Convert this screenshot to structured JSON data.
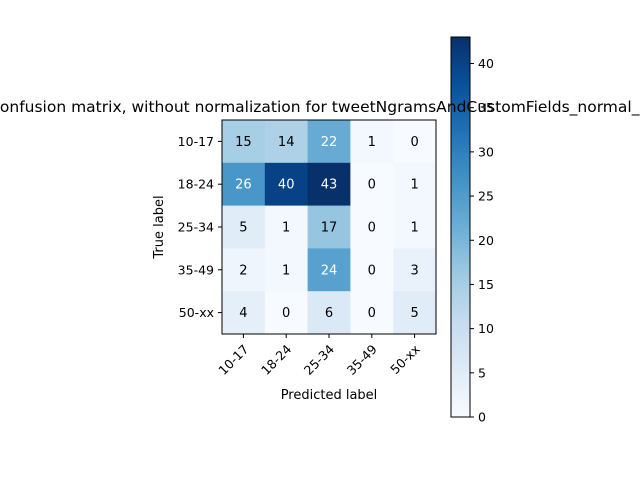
{
  "chart_data": {
    "type": "heatmap",
    "title": "Confusion matrix, without normalization for tweetNgramsAndCustomFields_normal_unb",
    "xlabel": "Predicted label",
    "ylabel": "True label",
    "x_categories": [
      "10-17",
      "18-24",
      "25-34",
      "35-49",
      "50-xx"
    ],
    "y_categories": [
      "10-17",
      "18-24",
      "25-34",
      "35-49",
      "50-xx"
    ],
    "values": [
      [
        15,
        14,
        22,
        1,
        0
      ],
      [
        26,
        40,
        43,
        0,
        1
      ],
      [
        5,
        1,
        17,
        0,
        1
      ],
      [
        2,
        1,
        24,
        0,
        3
      ],
      [
        4,
        0,
        6,
        0,
        5
      ]
    ],
    "colorbar": {
      "min": 0,
      "max": 43,
      "ticks": [
        0,
        5,
        10,
        15,
        20,
        25,
        30,
        35,
        40
      ]
    },
    "colormap": "Blues",
    "grid": false
  }
}
